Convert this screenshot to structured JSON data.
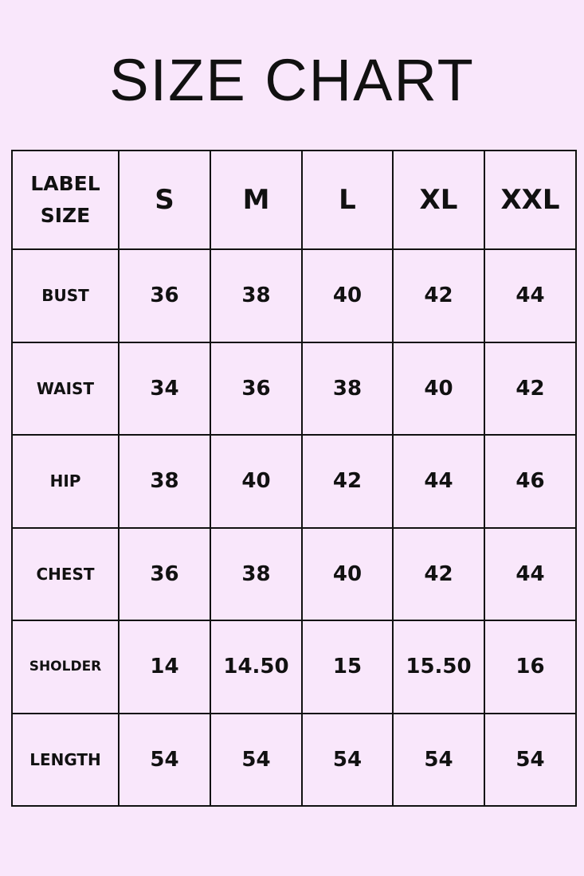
{
  "title": "SIZE CHART",
  "table": {
    "corner": [
      "LABEL",
      "SIZE"
    ],
    "sizes": [
      "S",
      "M",
      "L",
      "XL",
      "XXL"
    ],
    "rows": [
      {
        "label": "BUST",
        "values": [
          "36",
          "38",
          "40",
          "42",
          "44"
        ]
      },
      {
        "label": "WAIST",
        "values": [
          "34",
          "36",
          "38",
          "40",
          "42"
        ]
      },
      {
        "label": "HIP",
        "values": [
          "38",
          "40",
          "42",
          "44",
          "46"
        ]
      },
      {
        "label": "CHEST",
        "values": [
          "36",
          "38",
          "40",
          "42",
          "44"
        ]
      },
      {
        "label": "SHOLDER",
        "values": [
          "14",
          "14.50",
          "15",
          "15.50",
          "16"
        ]
      },
      {
        "label": "LENGTH",
        "values": [
          "54",
          "54",
          "54",
          "54",
          "54"
        ]
      }
    ]
  },
  "colors": {
    "background": "#f9e7fb",
    "border": "#111111"
  }
}
